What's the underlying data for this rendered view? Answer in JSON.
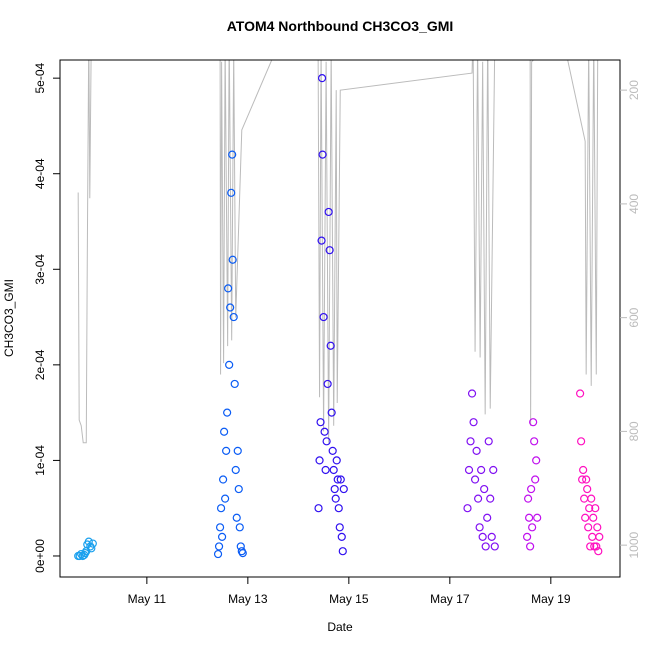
{
  "chart_data": {
    "type": "scatter",
    "title": "ATOM4 Northbound CH3CO3_GMI",
    "x_label": "Date",
    "y_label": "CH3CO3_GMI",
    "xlim": [
      9.28,
      20.37
    ],
    "xticks": [
      {
        "value": 11,
        "label": "May 11"
      },
      {
        "value": 13,
        "label": "May 13"
      },
      {
        "value": 15,
        "label": "May 15"
      },
      {
        "value": 17,
        "label": "May 17"
      },
      {
        "value": 19,
        "label": "May 19"
      }
    ],
    "ylim": [
      -2.2e-05,
      0.000519
    ],
    "yticks": [
      {
        "value": 0,
        "label": "0e+00"
      },
      {
        "value": 0.0001,
        "label": "1e-04"
      },
      {
        "value": 0.0002,
        "label": "2e-04"
      },
      {
        "value": 0.0003,
        "label": "3e-04"
      },
      {
        "value": 0.0004,
        "label": "4e-04"
      },
      {
        "value": 0.0005,
        "label": "5e-04"
      }
    ],
    "y2lim": [
      1056,
      147
    ],
    "y2ticks": [
      200,
      400,
      600,
      800,
      1000
    ],
    "y2_color": "#bbbbbb",
    "series": [
      {
        "type": "line",
        "axis": "y2",
        "color": "#bbbbbb",
        "x": [
          9.64,
          9.66,
          9.7,
          9.74,
          9.8,
          9.82,
          9.85,
          9.87,
          9.9,
          12.45,
          12.46,
          12.48,
          12.52,
          12.55,
          12.6,
          12.63,
          12.68,
          12.72,
          12.76,
          12.88,
          13.7,
          14.39,
          14.42,
          14.45,
          14.5,
          14.55,
          14.6,
          14.65,
          14.7,
          14.75,
          14.77,
          14.83,
          17.44,
          17.46,
          17.5,
          17.55,
          17.6,
          17.65,
          17.7,
          17.75,
          17.8,
          17.89,
          18.59,
          18.6,
          18.62,
          19.22,
          19.68,
          19.7,
          19.75,
          19.8,
          19.85,
          19.9,
          19.93
        ],
        "values": [
          380,
          780,
          790,
          820,
          820,
          500,
          100,
          390,
          100,
          100,
          700,
          150,
          680,
          120,
          650,
          100,
          640,
          130,
          600,
          270,
          100,
          100,
          740,
          120,
          800,
          150,
          820,
          130,
          790,
          200,
          750,
          200,
          170,
          100,
          660,
          120,
          670,
          150,
          770,
          100,
          760,
          120,
          100,
          790,
          150,
          100,
          290,
          700,
          120,
          720,
          110,
          700,
          110
        ]
      },
      {
        "type": "scatter",
        "color": "#1aa0ee",
        "x": [
          9.64,
          9.67,
          9.7,
          9.73,
          9.76,
          9.78,
          9.8,
          9.82,
          9.85,
          9.88,
          9.9,
          9.93
        ],
        "values": [
          0,
          0,
          2e-06,
          0,
          1e-06,
          3e-06,
          5e-06,
          1.2e-05,
          1.5e-05,
          1e-05,
          8e-06,
          1.3e-05
        ]
      },
      {
        "type": "scatter",
        "color": "#0a5cf5",
        "x": [
          12.41,
          12.43,
          12.45,
          12.47,
          12.49,
          12.51,
          12.53,
          12.55,
          12.57,
          12.59,
          12.61,
          12.63,
          12.65,
          12.67,
          12.69,
          12.7,
          12.72,
          12.74,
          12.76,
          12.78,
          12.8,
          12.82,
          12.84,
          12.86,
          12.88,
          12.9
        ],
        "values": [
          2e-06,
          1e-05,
          3e-05,
          5e-05,
          2e-05,
          8e-05,
          0.00013,
          6e-05,
          0.00011,
          0.00015,
          0.00028,
          0.0002,
          0.00026,
          0.00038,
          0.00042,
          0.00031,
          0.00025,
          0.00018,
          9e-05,
          4e-05,
          0.00011,
          7e-05,
          3e-05,
          1e-05,
          5e-06,
          3e-06
        ]
      },
      {
        "type": "scatter",
        "color": "#3010f0",
        "x": [
          14.4,
          14.42,
          14.44,
          14.46,
          14.47,
          14.48,
          14.5,
          14.52,
          14.54,
          14.56,
          14.58,
          14.6,
          14.62,
          14.64,
          14.66,
          14.68,
          14.7,
          14.72,
          14.74,
          14.76,
          14.78,
          14.8,
          14.82,
          14.84,
          14.86,
          14.88,
          14.9
        ],
        "values": [
          5e-05,
          0.0001,
          0.00014,
          0.00033,
          0.0005,
          0.00042,
          0.00025,
          0.00013,
          9e-05,
          0.00012,
          0.00018,
          0.00036,
          0.00032,
          0.00022,
          0.00015,
          0.00011,
          9e-05,
          7e-05,
          6e-05,
          0.0001,
          8e-05,
          5e-05,
          3e-05,
          8e-05,
          2e-05,
          5e-06,
          7e-05
        ]
      },
      {
        "type": "scatter",
        "color": "#8010f2",
        "x": [
          17.35,
          17.38,
          17.41,
          17.44,
          17.47,
          17.5,
          17.53,
          17.56,
          17.59,
          17.62,
          17.65,
          17.68,
          17.71,
          17.74,
          17.77,
          17.8,
          17.83,
          17.86,
          17.89
        ],
        "values": [
          5e-05,
          9e-05,
          0.00012,
          0.00017,
          0.00014,
          8e-05,
          0.00011,
          6e-05,
          3e-05,
          9e-05,
          2e-05,
          7e-05,
          1e-05,
          4e-05,
          0.00012,
          6e-05,
          2e-05,
          9e-05,
          1e-05
        ]
      },
      {
        "type": "scatter",
        "color": "#c010ee",
        "x": [
          18.53,
          18.55,
          18.57,
          18.59,
          18.61,
          18.63,
          18.65,
          18.67,
          18.69,
          18.71,
          18.73
        ],
        "values": [
          2e-05,
          6e-05,
          4e-05,
          1e-05,
          7e-05,
          3e-05,
          0.00014,
          0.00012,
          8e-05,
          0.0001,
          4e-05
        ]
      },
      {
        "type": "scatter",
        "color": "#ff10c0",
        "x": [
          19.58,
          19.6,
          19.62,
          19.64,
          19.66,
          19.68,
          19.7,
          19.72,
          19.74,
          19.76,
          19.78,
          19.8,
          19.82,
          19.84,
          19.86,
          19.88,
          19.9,
          19.92,
          19.94,
          19.96
        ],
        "values": [
          0.00017,
          0.00012,
          8e-05,
          9e-05,
          6e-05,
          4e-05,
          8e-05,
          7e-05,
          3e-05,
          5e-05,
          1e-05,
          6e-05,
          2e-05,
          4e-05,
          1e-05,
          5e-05,
          1e-05,
          3e-05,
          5e-06,
          2e-05
        ]
      }
    ]
  }
}
